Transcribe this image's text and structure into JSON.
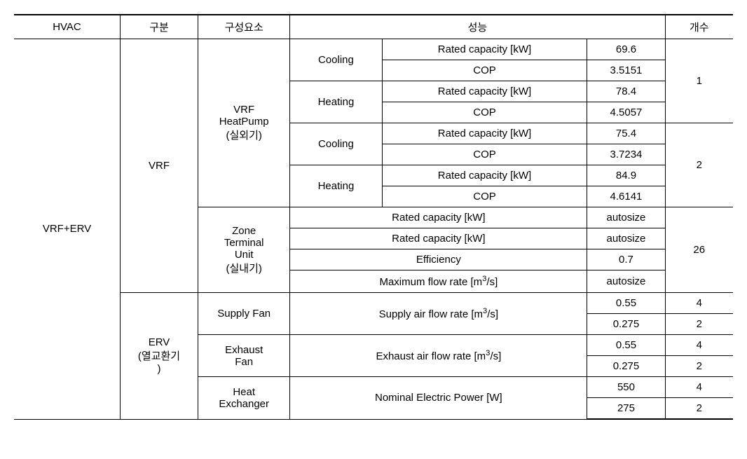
{
  "header": {
    "hvac": "HVAC",
    "gubun": "구분",
    "component": "구성요소",
    "performance": "성능",
    "count": "개수"
  },
  "root_label": "VRF+ERV",
  "group_vrf": {
    "label": "VRF",
    "heatpump": {
      "label": "VRF\nHeatPump\n(실외기)",
      "unit1": {
        "cooling_label": "Cooling",
        "heating_label": "Heating",
        "cooling_capacity_label": "Rated capacity [kW]",
        "cooling_capacity_value": "69.6",
        "cooling_cop_label": "COP",
        "cooling_cop_value": "3.5151",
        "heating_capacity_label": "Rated capacity [kW]",
        "heating_capacity_value": "78.4",
        "heating_cop_label": "COP",
        "heating_cop_value": "4.5057",
        "count": "1"
      },
      "unit2": {
        "cooling_label": "Cooling",
        "heating_label": "Heating",
        "cooling_capacity_label": "Rated capacity [kW]",
        "cooling_capacity_value": "75.4",
        "cooling_cop_label": "COP",
        "cooling_cop_value": "3.7234",
        "heating_capacity_label": "Rated capacity [kW]",
        "heating_capacity_value": "84.9",
        "heating_cop_label": "COP",
        "heating_cop_value": "4.6141",
        "count": "2"
      }
    },
    "ztu": {
      "label": "Zone\nTerminal\nUnit\n(실내기)",
      "row1_label": "Rated capacity [kW]",
      "row1_value": "autosize",
      "row2_label": "Rated capacity [kW]",
      "row2_value": "autosize",
      "row3_label": "Efficiency",
      "row3_value": "0.7",
      "row4_label": "Maximum flow rate [m³/s]",
      "row4_value": "autosize",
      "count": "26"
    }
  },
  "group_erv": {
    "label": "ERV\n(열교환기\n)",
    "supply_fan": {
      "label": "Supply Fan",
      "metric_label": "Supply air flow rate [m³/s]",
      "val1": "0.55",
      "cnt1": "4",
      "val2": "0.275",
      "cnt2": "2"
    },
    "exhaust_fan": {
      "label": "Exhaust\nFan",
      "metric_label": "Exhaust air flow rate [m³/s]",
      "val1": "0.55",
      "cnt1": "4",
      "val2": "0.275",
      "cnt2": "2"
    },
    "heat_exchanger": {
      "label": "Heat\nExchanger",
      "metric_label": "Nominal Electric Power [W]",
      "val1": "550",
      "cnt1": "4",
      "val2": "275",
      "cnt2": "2"
    }
  }
}
